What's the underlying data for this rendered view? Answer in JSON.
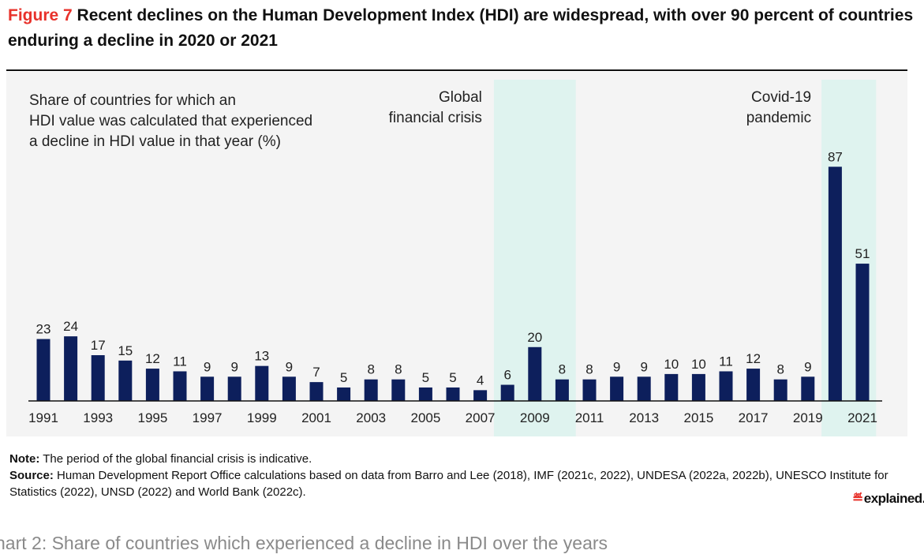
{
  "figure": {
    "label": "Figure 7",
    "title": "Recent declines on the Human Development Index (HDI) are widespread, with over 90 percent of countries enduring a decline in 2020 or 2021"
  },
  "chart_data": {
    "type": "bar",
    "description_lines": [
      "Share of countries for which an",
      "HDI value was calculated that experienced",
      "a decline in HDI value in that year (%)"
    ],
    "categories": [
      "1991",
      "1992",
      "1993",
      "1994",
      "1995",
      "1996",
      "1997",
      "1998",
      "1999",
      "2000",
      "2001",
      "2002",
      "2003",
      "2004",
      "2005",
      "2006",
      "2007",
      "2008",
      "2009",
      "2010",
      "2011",
      "2012",
      "2013",
      "2014",
      "2015",
      "2016",
      "2017",
      "2018",
      "2019",
      "2020",
      "2021"
    ],
    "values": [
      23,
      24,
      17,
      15,
      12,
      11,
      9,
      9,
      13,
      9,
      7,
      5,
      8,
      8,
      5,
      5,
      4,
      6,
      20,
      8,
      8,
      9,
      9,
      10,
      10,
      11,
      12,
      8,
      9,
      87,
      51
    ],
    "x_tick_labels": [
      "1991",
      "1993",
      "1995",
      "1997",
      "1999",
      "2001",
      "2003",
      "2005",
      "2007",
      "2009",
      "2011",
      "2013",
      "2015",
      "2017",
      "2019",
      "2021"
    ],
    "ylim": [
      0,
      95
    ],
    "bar_color": "#0d1f5c",
    "highlight_color": "#dff3ef",
    "shaded_periods": [
      {
        "start": "2008",
        "end": "2010",
        "label_lines": [
          "Global",
          "financial crisis"
        ]
      },
      {
        "start": "2020",
        "end": "2021",
        "label_lines": [
          "Covid-19",
          "pandemic"
        ]
      }
    ],
    "grid": false
  },
  "notes": {
    "note_label": "Note:",
    "note_text": "The period of the global financial crisis is indicative.",
    "source_label": "Source:",
    "source_text": "Human Development Report Office calculations based on data from Barro and Lee (2018), IMF (2021c, 2022), UNDESA (2022a, 2022b), UNESCO Institute for Statistics (2022), UNSD (2022) and World Bank (2022c)."
  },
  "logo": {
    "mark": "EXPRESS",
    "word": "explained."
  },
  "caption": "hart 2: Share of countries which experienced a decline in HDI over the years"
}
